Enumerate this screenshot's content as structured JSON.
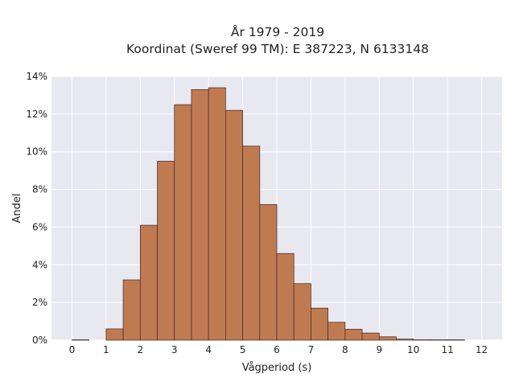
{
  "chart_data": {
    "type": "bar",
    "title_line1": "År 1979 - 2019",
    "title_line2": "Koordinat (Sweref 99 TM): E 387223, N 6133148",
    "xlabel": "Vågperiod (s)",
    "ylabel": "Andel",
    "xlim": [
      -0.6,
      12.6
    ],
    "ylim": [
      0,
      14
    ],
    "xticks": [
      0,
      1,
      2,
      3,
      4,
      5,
      6,
      7,
      8,
      9,
      10,
      11,
      12
    ],
    "xtick_labels": [
      "0",
      "1",
      "2",
      "3",
      "4",
      "5",
      "6",
      "7",
      "8",
      "9",
      "10",
      "11",
      "12"
    ],
    "yticks": [
      0,
      2,
      4,
      6,
      8,
      10,
      12,
      14
    ],
    "ytick_labels": [
      "0%",
      "2%",
      "4%",
      "6%",
      "8%",
      "10%",
      "12%",
      "14%"
    ],
    "bin_width": 0.5,
    "bins": [
      {
        "x0": 0.0,
        "value": 0.02
      },
      {
        "x0": 1.0,
        "value": 0.6
      },
      {
        "x0": 1.5,
        "value": 3.2
      },
      {
        "x0": 2.0,
        "value": 6.1
      },
      {
        "x0": 2.5,
        "value": 9.5
      },
      {
        "x0": 3.0,
        "value": 12.5
      },
      {
        "x0": 3.5,
        "value": 13.3
      },
      {
        "x0": 4.0,
        "value": 13.4
      },
      {
        "x0": 4.5,
        "value": 12.2
      },
      {
        "x0": 5.0,
        "value": 10.3
      },
      {
        "x0": 5.5,
        "value": 7.2
      },
      {
        "x0": 6.0,
        "value": 4.6
      },
      {
        "x0": 6.5,
        "value": 3.0
      },
      {
        "x0": 7.0,
        "value": 1.7
      },
      {
        "x0": 7.5,
        "value": 0.95
      },
      {
        "x0": 8.0,
        "value": 0.58
      },
      {
        "x0": 8.5,
        "value": 0.38
      },
      {
        "x0": 9.0,
        "value": 0.18
      },
      {
        "x0": 9.5,
        "value": 0.06
      },
      {
        "x0": 10.0,
        "value": 0.02
      },
      {
        "x0": 10.5,
        "value": 0.02
      },
      {
        "x0": 11.0,
        "value": 0.02
      }
    ],
    "grid": true,
    "colors": {
      "plot_background": "#e8e8f0",
      "grid": "#ffffff",
      "bar_fill": "#c07a52",
      "bar_edge": "#3a2a20"
    }
  }
}
